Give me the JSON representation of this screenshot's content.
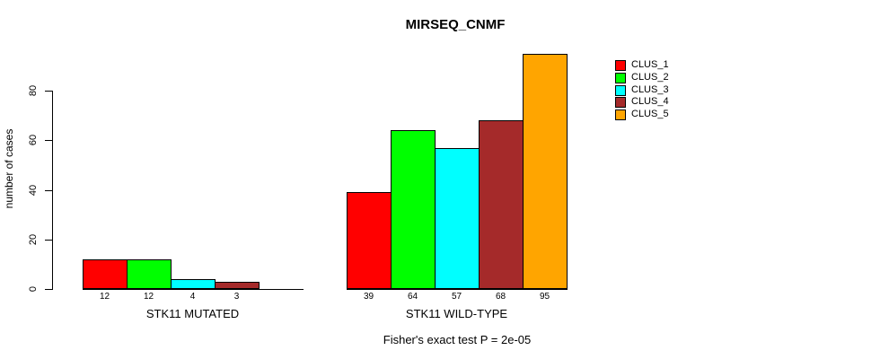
{
  "title": "MIRSEQ_CNMF",
  "y_axis": {
    "label": "number of cases",
    "ticks": [
      0,
      20,
      40,
      60,
      80
    ]
  },
  "footer": "Fisher's exact test P = 2e-05",
  "legend": [
    {
      "label": "CLUS_1",
      "color": "#ff0000"
    },
    {
      "label": "CLUS_2",
      "color": "#00ff00"
    },
    {
      "label": "CLUS_3",
      "color": "#00ffff"
    },
    {
      "label": "CLUS_4",
      "color": "#a52a2a"
    },
    {
      "label": "CLUS_5",
      "color": "#ffa500"
    }
  ],
  "chart_data": {
    "type": "bar",
    "title": "MIRSEQ_CNMF",
    "ylabel": "number of cases",
    "xlabel": "",
    "ylim": [
      0,
      95
    ],
    "yticks": [
      0,
      20,
      40,
      60,
      80
    ],
    "grid": false,
    "legend_position": "top-right",
    "series_names": [
      "CLUS_1",
      "CLUS_2",
      "CLUS_3",
      "CLUS_4",
      "CLUS_5"
    ],
    "series_colors": [
      "#ff0000",
      "#00ff00",
      "#00ffff",
      "#a52a2a",
      "#ffa500"
    ],
    "groups": [
      {
        "label": "STK11 MUTATED",
        "values": [
          12,
          12,
          4,
          3,
          0
        ],
        "value_labels": [
          "12",
          "12",
          "4",
          "3",
          ""
        ]
      },
      {
        "label": "STK11 WILD-TYPE",
        "values": [
          39,
          64,
          57,
          68,
          95
        ],
        "value_labels": [
          "39",
          "64",
          "57",
          "68",
          "95"
        ]
      }
    ],
    "annotation": "Fisher's exact test P = 2e-05"
  }
}
